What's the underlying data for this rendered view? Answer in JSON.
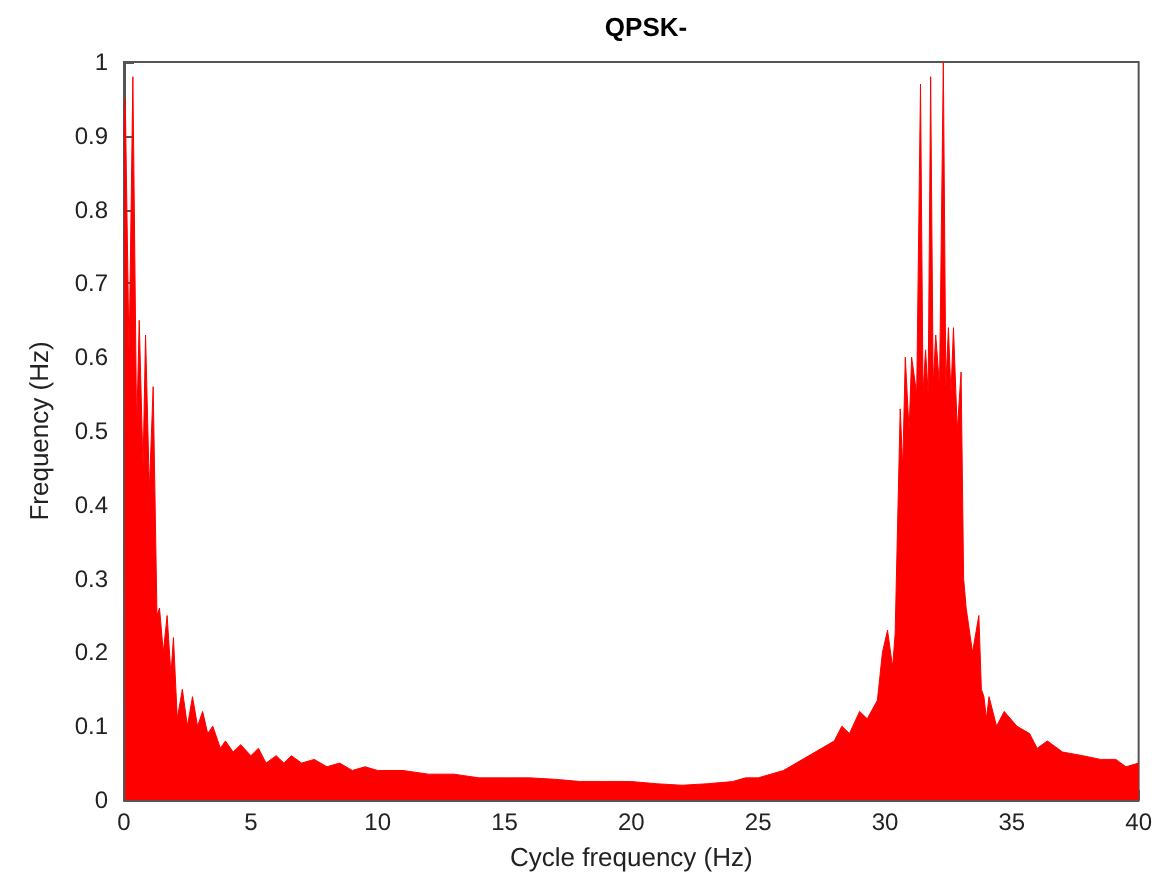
{
  "chart_data": {
    "type": "area",
    "title": "QPSK-",
    "xlabel": "Cycle frequency (Hz)",
    "ylabel": "Frequency (Hz)",
    "xlim": [
      0,
      40
    ],
    "xticks": [
      0,
      5,
      10,
      15,
      20,
      25,
      30,
      35,
      40
    ],
    "ylim": [
      0,
      1
    ],
    "yticks": [
      0,
      0.1,
      0.2,
      0.3,
      0.4,
      0.5,
      0.6,
      0.7,
      0.8,
      0.9,
      1
    ],
    "grid": false,
    "marker": "none",
    "series": [
      {
        "color": "#ff0000",
        "x": [
          0,
          0.05,
          0.2,
          0.35,
          0.5,
          0.6,
          0.75,
          0.85,
          1.0,
          1.15,
          1.3,
          1.4,
          1.55,
          1.7,
          1.85,
          1.95,
          2.1,
          2.3,
          2.5,
          2.7,
          2.9,
          3.1,
          3.3,
          3.5,
          3.8,
          4.0,
          4.3,
          4.6,
          5.0,
          5.3,
          5.6,
          6.0,
          6.3,
          6.6,
          7.0,
          7.5,
          8.0,
          8.5,
          9.0,
          9.5,
          10,
          11,
          12,
          13,
          14,
          15,
          16,
          17,
          18,
          19,
          20,
          21,
          22,
          23,
          24,
          24.5,
          25,
          25.5,
          26,
          26.5,
          27,
          27.5,
          28,
          28.3,
          28.6,
          29,
          29.3,
          29.7,
          29.9,
          30.1,
          30.3,
          30.4,
          30.6,
          30.7,
          30.8,
          30.95,
          31.05,
          31.25,
          31.4,
          31.5,
          31.6,
          31.7,
          31.8,
          31.9,
          32.0,
          32.15,
          32.3,
          32.4,
          32.5,
          32.6,
          32.7,
          32.85,
          33.0,
          33.1,
          33.2,
          33.45,
          33.7,
          33.8,
          33.9,
          34.0,
          34.1,
          34.4,
          34.7,
          35.2,
          35.7,
          36.0,
          36.4,
          37.0,
          37.8,
          38.5,
          39.1,
          39.5,
          40
        ],
        "values": [
          0.9,
          0.95,
          0.6,
          0.98,
          0.5,
          0.65,
          0.45,
          0.63,
          0.42,
          0.56,
          0.25,
          0.26,
          0.2,
          0.25,
          0.17,
          0.22,
          0.11,
          0.15,
          0.1,
          0.14,
          0.1,
          0.12,
          0.09,
          0.1,
          0.07,
          0.08,
          0.065,
          0.075,
          0.06,
          0.07,
          0.05,
          0.06,
          0.05,
          0.06,
          0.05,
          0.055,
          0.045,
          0.05,
          0.04,
          0.045,
          0.04,
          0.04,
          0.035,
          0.035,
          0.03,
          0.03,
          0.03,
          0.028,
          0.025,
          0.025,
          0.025,
          0.022,
          0.02,
          0.022,
          0.025,
          0.03,
          0.03,
          0.035,
          0.04,
          0.05,
          0.06,
          0.07,
          0.08,
          0.1,
          0.09,
          0.12,
          0.11,
          0.135,
          0.2,
          0.23,
          0.18,
          0.225,
          0.53,
          0.45,
          0.6,
          0.5,
          0.6,
          0.55,
          0.97,
          0.55,
          0.61,
          0.55,
          0.98,
          0.56,
          0.63,
          0.56,
          1.0,
          0.56,
          0.64,
          0.55,
          0.64,
          0.5,
          0.58,
          0.3,
          0.26,
          0.2,
          0.25,
          0.15,
          0.14,
          0.11,
          0.14,
          0.1,
          0.12,
          0.1,
          0.09,
          0.07,
          0.08,
          0.065,
          0.06,
          0.055,
          0.055,
          0.045,
          0.05
        ]
      }
    ]
  }
}
